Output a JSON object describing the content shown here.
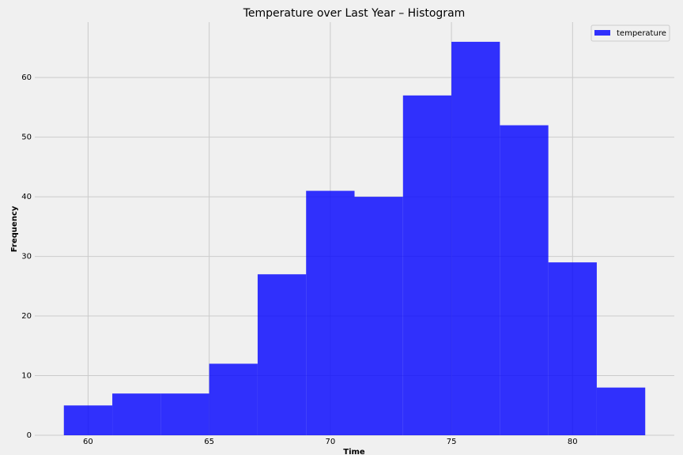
{
  "chart_data": {
    "type": "histogram",
    "title": "Temperature over Last Year – Histogram",
    "x_label": "Time",
    "y_label": "Frequency",
    "bins": [
      59,
      61,
      63,
      65,
      67,
      69,
      71,
      73,
      75,
      77,
      79,
      81,
      83
    ],
    "series": [
      {
        "name": "temperature",
        "color": "#0000ff",
        "alpha": 0.8,
        "values": [
          5,
          7,
          7,
          12,
          27,
          41,
          40,
          57,
          66,
          52,
          29,
          8
        ]
      }
    ],
    "xlim": [
      57.8,
      84.2
    ],
    "ylim": [
      0,
      69.3
    ],
    "xticks": [
      60,
      65,
      70,
      75,
      80
    ],
    "yticks": [
      0,
      10,
      20,
      30,
      40,
      50,
      60
    ],
    "grid": true,
    "legend": "upper right"
  }
}
